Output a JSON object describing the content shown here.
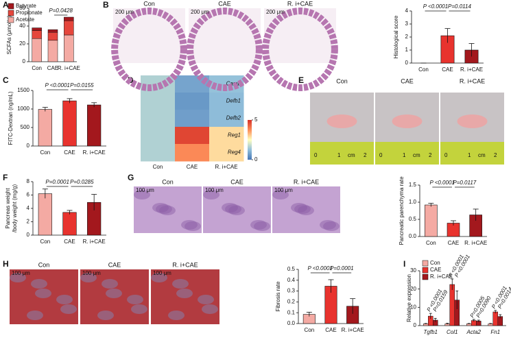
{
  "chart_data": [
    {
      "panel": "A",
      "type": "stacked_bar",
      "ylabel": "SCFAs (μmol/g)",
      "categories": [
        "Con",
        "CAE",
        "R. i+CAE"
      ],
      "series": [
        {
          "name": "Butyrate",
          "color": "#a3181d",
          "values": [
            3,
            3,
            4
          ]
        },
        {
          "name": "Propionate",
          "color": "#e5463c",
          "values": [
            9,
            9,
            16
          ]
        },
        {
          "name": "Acetate",
          "color": "#f4aaa3",
          "values": [
            26,
            24,
            30
          ]
        }
      ],
      "ylim": [
        0,
        60
      ],
      "yticks": [
        0,
        20,
        40,
        60
      ],
      "annotations": [
        "P=0.0428"
      ]
    },
    {
      "type": "bar",
      "ylabel": "Histological score",
      "categories": [
        "Con",
        "CAE",
        "R. i+CAE"
      ],
      "colors": [
        "#f4aaa3",
        "#e8332e",
        "#a3181d"
      ],
      "values": [
        0,
        2.1,
        1.0
      ],
      "errors": [
        0,
        0.55,
        0.5
      ],
      "ylim": [
        0,
        4
      ],
      "yticks": [
        0,
        1,
        2,
        3,
        4
      ],
      "annotations": [
        "P <0.0001",
        "P=0.0114"
      ]
    },
    {
      "panel": "C",
      "type": "bar",
      "ylabel": "FITC-Dextran (ng/mL)",
      "categories": [
        "Con",
        "CAE",
        "R. i+CAE"
      ],
      "colors": [
        "#f4aaa3",
        "#e8332e",
        "#a3181d"
      ],
      "values": [
        990,
        1220,
        1110
      ],
      "errors": [
        55,
        60,
        60
      ],
      "ylim": [
        0,
        1500
      ],
      "yticks": [
        0,
        500,
        1000,
        1500
      ],
      "annotations": [
        "P <0.0001",
        "P=0.0155"
      ]
    },
    {
      "panel": "D",
      "type": "heatmap",
      "rows": [
        "Camp",
        "Defb1",
        "Defb2",
        "Reg1",
        "Reg4"
      ],
      "columns": [
        "Con",
        "CAE",
        "R. i+CAE"
      ],
      "values": [
        [
          1.6,
          0.8,
          1.3
        ],
        [
          1.6,
          0.6,
          1.2
        ],
        [
          1.6,
          0.7,
          1.2
        ],
        [
          1.6,
          4.7,
          2.9
        ],
        [
          1.6,
          3.8,
          2.9
        ]
      ],
      "clim": [
        0,
        5
      ],
      "cticks": [
        0,
        5
      ]
    },
    {
      "panel": "F",
      "type": "bar",
      "ylabel": [
        "Pancreas weight",
        "/body weight (mg/g)"
      ],
      "categories": [
        "Con",
        "CAE",
        "R. i+CAE"
      ],
      "colors": [
        "#f4aaa3",
        "#e8332e",
        "#a3181d"
      ],
      "values": [
        6.2,
        3.4,
        4.9
      ],
      "errors": [
        0.7,
        0.3,
        1.2
      ],
      "ylim": [
        0,
        8
      ],
      "yticks": [
        0,
        2,
        4,
        6,
        8
      ],
      "annotations": [
        "P=0.0001",
        "P=0.0285"
      ]
    },
    {
      "type": "bar",
      "ylabel": "Pancreatic parenchyma rate",
      "categories": [
        "Con",
        "CAE",
        "R. i+CAE"
      ],
      "colors": [
        "#f4aaa3",
        "#e8332e",
        "#a3181d"
      ],
      "values": [
        0.92,
        0.39,
        0.63
      ],
      "errors": [
        0.05,
        0.07,
        0.17
      ],
      "ylim": [
        0,
        1.5
      ],
      "yticks": [
        {
          "value": 0,
          "label": "0.0"
        },
        0.5,
        {
          "value": 1,
          "label": "1.0"
        },
        1.5
      ],
      "annotations": [
        "P <0.0001",
        "P=0.0117"
      ]
    },
    {
      "type": "bar",
      "ylabel": "Fibrosis rate",
      "categories": [
        "Con",
        "CAE",
        "R. i+CAE"
      ],
      "colors": [
        "#f4aaa3",
        "#e8332e",
        "#a3181d"
      ],
      "values": [
        0.085,
        0.345,
        0.16
      ],
      "errors": [
        0.02,
        0.06,
        0.07
      ],
      "ylim": [
        0,
        0.5
      ],
      "yticks": [
        {
          "value": 0,
          "label": "0.0"
        },
        0.1,
        0.2,
        0.3,
        0.4,
        0.5
      ],
      "annotations": [
        "P <0.0001",
        "P=0.0001"
      ]
    },
    {
      "panel": "I",
      "type": "grouped_bar",
      "ylabel": "Relative expression",
      "categories": [
        "Tgfb1",
        "Col1",
        "Acta2",
        "Fn1"
      ],
      "series": [
        {
          "name": "Con",
          "color": "#f4aaa3",
          "values": [
            1,
            1,
            1,
            1
          ],
          "errors": [
            0.2,
            0.3,
            0.2,
            0.2
          ]
        },
        {
          "name": "CAE",
          "color": "#e8332e",
          "values": [
            5.2,
            22.5,
            2.8,
            7.5
          ],
          "errors": [
            1.5,
            3,
            0.6,
            0.8
          ]
        },
        {
          "name": "R. i+CAE",
          "color": "#a3181d",
          "values": [
            3,
            14,
            2.5,
            5
          ],
          "errors": [
            1,
            5,
            0.5,
            1
          ]
        }
      ],
      "ylim": [
        0,
        30
      ],
      "yticks": [
        0,
        10,
        20,
        30
      ],
      "annotations": [
        [
          "P <0.0001",
          "P=0.0159"
        ],
        [
          "P <0.0001",
          "P <0.0001"
        ],
        [
          "P=0.0005",
          "P=0.0090"
        ],
        [
          "P <0.0001",
          "P=0.0014"
        ]
      ]
    }
  ],
  "images": [
    {
      "panel": "B",
      "labels": [
        "Con",
        "CAE",
        "R. i+CAE"
      ],
      "scale": "200 μm"
    },
    {
      "panel": "E",
      "labels": [
        "Con",
        "CAE",
        "R. i+CAE"
      ],
      "ruler": [
        "0",
        "1",
        "cm",
        "2"
      ]
    },
    {
      "panel": "G",
      "labels": [
        "Con",
        "CAE",
        "R. i+CAE"
      ],
      "scale": "100 μm"
    },
    {
      "panel": "H",
      "labels": [
        "Con",
        "CAE",
        "R. i+CAE"
      ],
      "scale": "100 μm"
    }
  ]
}
